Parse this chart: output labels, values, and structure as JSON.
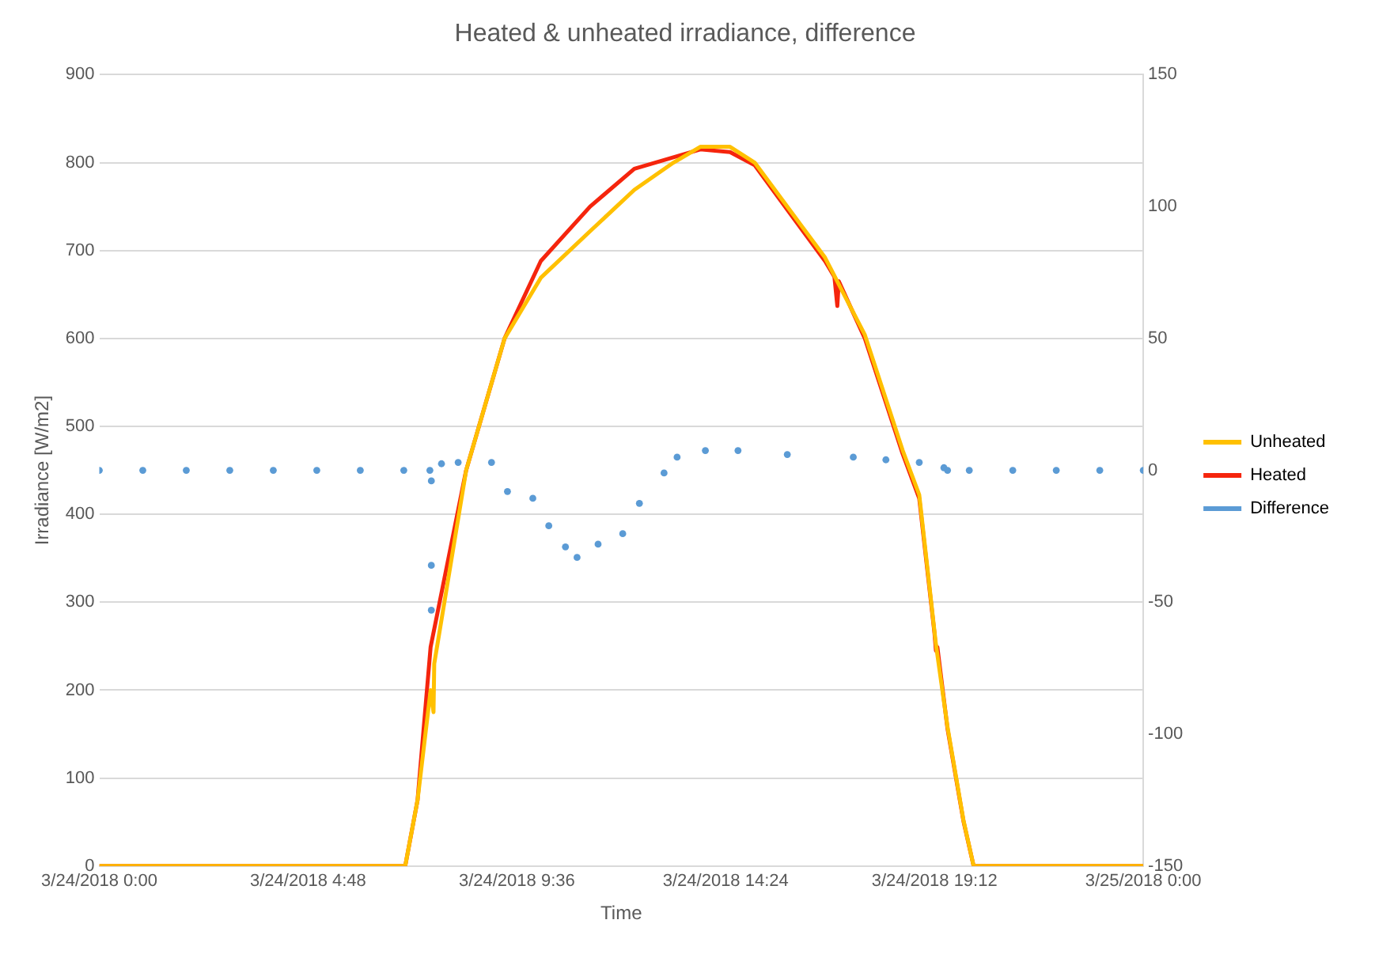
{
  "chart_data": {
    "type": "line",
    "title": "Heated & unheated irradiance, difference",
    "xlabel": "Time",
    "ylabel": "Irradiance [W/m2]",
    "xlim": [
      "2018-03-24T00:00",
      "2018-03-25T00:00"
    ],
    "xticks": [
      {
        "value": "2018-03-24T00:00",
        "label": "3/24/2018 0:00"
      },
      {
        "value": "2018-03-24T04:48",
        "label": "3/24/2018 4:48"
      },
      {
        "value": "2018-03-24T09:36",
        "label": "3/24/2018 9:36"
      },
      {
        "value": "2018-03-24T14:24",
        "label": "3/24/2018 14:24"
      },
      {
        "value": "2018-03-24T19:12",
        "label": "3/24/2018 19:12"
      },
      {
        "value": "2018-03-25T00:00",
        "label": "3/25/2018 0:00"
      }
    ],
    "ylim": [
      0,
      900
    ],
    "yticks": [
      0,
      100,
      200,
      300,
      400,
      500,
      600,
      700,
      800,
      900
    ],
    "y2lim": [
      -150,
      150
    ],
    "y2ticks": [
      -150,
      -100,
      -50,
      0,
      50,
      100,
      150
    ],
    "grid": "y",
    "legend": "right",
    "series": [
      {
        "name": "Unheated",
        "type": "line",
        "color": "#ffc000",
        "marker": "none",
        "line_style": "solid",
        "x": [
          "2018-03-24T00:00",
          "2018-03-24T07:02",
          "2018-03-24T07:19",
          "2018-03-24T07:37",
          "2018-03-24T07:41",
          "2018-03-24T07:42",
          "2018-03-24T08:26",
          "2018-03-24T09:19",
          "2018-03-24T10:09",
          "2018-03-24T11:17",
          "2018-03-24T12:18",
          "2018-03-24T13:12",
          "2018-03-24T13:49",
          "2018-03-24T14:30",
          "2018-03-24T15:04",
          "2018-03-24T16:41",
          "2018-03-24T17:36",
          "2018-03-24T18:28",
          "2018-03-24T18:51",
          "2018-03-24T19:14",
          "2018-03-24T19:30",
          "2018-03-24T19:52",
          "2018-03-24T20:06",
          "2018-03-25T00:00"
        ],
        "values": [
          0,
          0,
          75,
          200,
          175,
          230,
          450,
          600,
          669,
          722,
          769,
          800,
          818,
          818,
          800,
          692,
          604,
          473,
          422,
          252,
          158,
          52,
          0,
          0
        ]
      },
      {
        "name": "Heated",
        "type": "line",
        "color": "#f5250d",
        "marker": "none",
        "line_style": "solid",
        "x": [
          "2018-03-24T00:00",
          "2018-03-24T07:02",
          "2018-03-24T07:19",
          "2018-03-24T07:37",
          "2018-03-24T08:26",
          "2018-03-24T09:19",
          "2018-03-24T10:09",
          "2018-03-24T11:17",
          "2018-03-24T12:18",
          "2018-03-24T13:49",
          "2018-03-24T14:30",
          "2018-03-24T15:04",
          "2018-03-24T16:41",
          "2018-03-24T16:54",
          "2018-03-24T16:58",
          "2018-03-24T17:00",
          "2018-03-24T17:36",
          "2018-03-24T18:28",
          "2018-03-24T18:51",
          "2018-03-24T19:12",
          "2018-03-24T19:14",
          "2018-03-24T19:16",
          "2018-03-24T19:30",
          "2018-03-24T19:52",
          "2018-03-24T20:06",
          "2018-03-25T00:00"
        ],
        "values": [
          0,
          0,
          75,
          249,
          450,
          600,
          688,
          750,
          793,
          815,
          812,
          797,
          688,
          670,
          637,
          665,
          600,
          469,
          418,
          265,
          245,
          249,
          156,
          51,
          0,
          0
        ]
      },
      {
        "name": "Difference",
        "type": "scatter",
        "axis": "y2",
        "color": "#5b9bd5",
        "marker": "circle",
        "x": [
          "2018-03-24T00:00",
          "2018-03-24T01:00",
          "2018-03-24T02:00",
          "2018-03-24T03:00",
          "2018-03-24T04:00",
          "2018-03-24T05:00",
          "2018-03-24T06:00",
          "2018-03-24T07:00",
          "2018-03-24T07:36",
          "2018-03-24T07:38",
          "2018-03-24T07:38",
          "2018-03-24T07:38",
          "2018-03-24T07:52",
          "2018-03-24T08:15",
          "2018-03-24T09:01",
          "2018-03-24T09:23",
          "2018-03-24T09:58",
          "2018-03-24T10:20",
          "2018-03-24T10:43",
          "2018-03-24T10:59",
          "2018-03-24T11:28",
          "2018-03-24T12:02",
          "2018-03-24T12:25",
          "2018-03-24T12:59",
          "2018-03-24T13:17",
          "2018-03-24T13:56",
          "2018-03-24T14:41",
          "2018-03-24T15:49",
          "2018-03-24T17:20",
          "2018-03-24T18:05",
          "2018-03-24T18:51",
          "2018-03-24T19:25",
          "2018-03-24T19:30",
          "2018-03-24T20:00",
          "2018-03-24T21:00",
          "2018-03-24T22:00",
          "2018-03-24T23:00",
          "2018-03-25T00:00"
        ],
        "values": [
          0,
          0,
          0,
          0,
          0,
          0,
          0,
          0,
          0,
          -4,
          -36,
          -53,
          2.5,
          3,
          3,
          -8,
          -10.6,
          -21,
          -29,
          -33,
          -28,
          -24,
          -12.5,
          -1,
          5,
          7.5,
          7.5,
          6,
          5,
          4,
          3,
          1,
          0,
          0,
          0,
          0,
          0,
          0
        ]
      }
    ]
  }
}
